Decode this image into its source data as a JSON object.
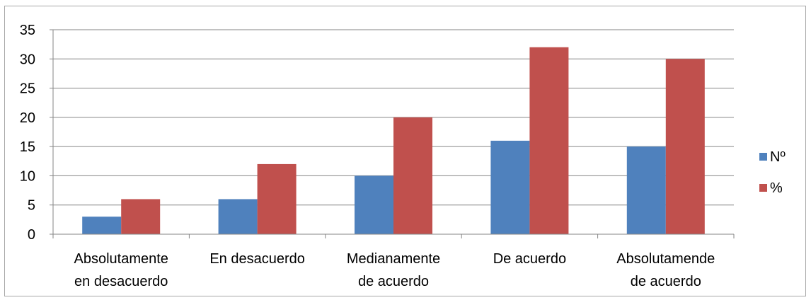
{
  "chart_data": {
    "type": "bar",
    "categories": [
      [
        "Absolutamente",
        "en desacuerdo"
      ],
      [
        "En desacuerdo"
      ],
      [
        "Medianamente",
        "de acuerdo"
      ],
      [
        "De acuerdo"
      ],
      [
        "Absolutamende",
        "de acuerdo"
      ]
    ],
    "series": [
      {
        "name": "Nº",
        "color": "#4f81bd",
        "values": [
          3,
          6,
          10,
          16,
          15
        ]
      },
      {
        "name": "%",
        "color": "#c0504d",
        "values": [
          6,
          12,
          20,
          32,
          30
        ]
      }
    ],
    "ylim": [
      0,
      35
    ],
    "yticks": [
      0,
      5,
      10,
      15,
      20,
      25,
      30,
      35
    ],
    "grid": true,
    "legend_position": "right",
    "title": "",
    "xlabel": "",
    "ylabel": ""
  }
}
